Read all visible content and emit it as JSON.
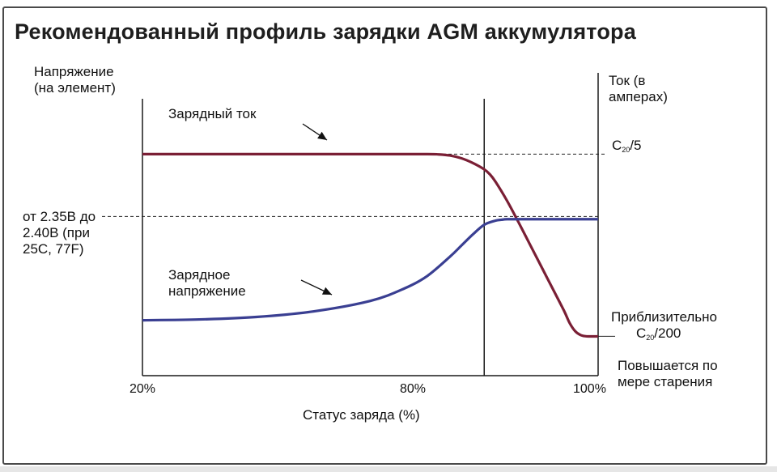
{
  "title": "Рекомендованный профиль зарядки AGM аккумулятора",
  "chart_data": {
    "type": "line",
    "title": "Рекомендованный профиль зарядки AGM аккумулятора",
    "xlabel": "Статус заряда (%)",
    "ylabel_left": "Напряжение\n(на элемент)",
    "ylabel_right": "Ток (в\nамперах)",
    "x_ticks": [
      "20%",
      "80%",
      "100%"
    ],
    "x_tick_values": [
      20,
      80,
      100
    ],
    "xlim": [
      20,
      100
    ],
    "voltage_level_label": "от 2.35В до\n2.40В (при\n25С, 77F)",
    "current_levels": {
      "high": "C20/5",
      "low_prefix": "Приблизительно",
      "low": "C20/200",
      "low_note": "Повышается по\nмере старения"
    },
    "series": [
      {
        "name": "Зарядный ток",
        "color": "#7a1f35",
        "axis": "right",
        "x": [
          20,
          50,
          60,
          70,
          72,
          74,
          76,
          78,
          80,
          81,
          82,
          84,
          86,
          88,
          90,
          92,
          94,
          95,
          96,
          97,
          98,
          100
        ],
        "y": [
          0.8,
          0.8,
          0.8,
          0.8,
          0.799,
          0.795,
          0.785,
          0.768,
          0.745,
          0.727,
          0.7,
          0.632,
          0.555,
          0.475,
          0.395,
          0.315,
          0.235,
          0.19,
          0.16,
          0.146,
          0.142,
          0.142
        ]
      },
      {
        "name": "Зарядное напряжение",
        "color": "#3a3f92",
        "axis": "left",
        "x": [
          20,
          30,
          40,
          50,
          60,
          66,
          70,
          74,
          76,
          78,
          80,
          82,
          83,
          84,
          86,
          90,
          100
        ],
        "y": [
          0.2,
          0.203,
          0.212,
          0.232,
          0.27,
          0.315,
          0.36,
          0.43,
          0.47,
          0.51,
          0.545,
          0.56,
          0.563,
          0.565,
          0.565,
          0.565,
          0.565
        ]
      }
    ],
    "reference_lines": [
      {
        "orientation": "horizontal",
        "style": "dashed",
        "y": 0.8
      },
      {
        "orientation": "horizontal",
        "style": "dashed",
        "y": 0.575
      },
      {
        "orientation": "vertical",
        "style": "solid",
        "x": 80
      }
    ],
    "grid": false,
    "legend": "none"
  }
}
